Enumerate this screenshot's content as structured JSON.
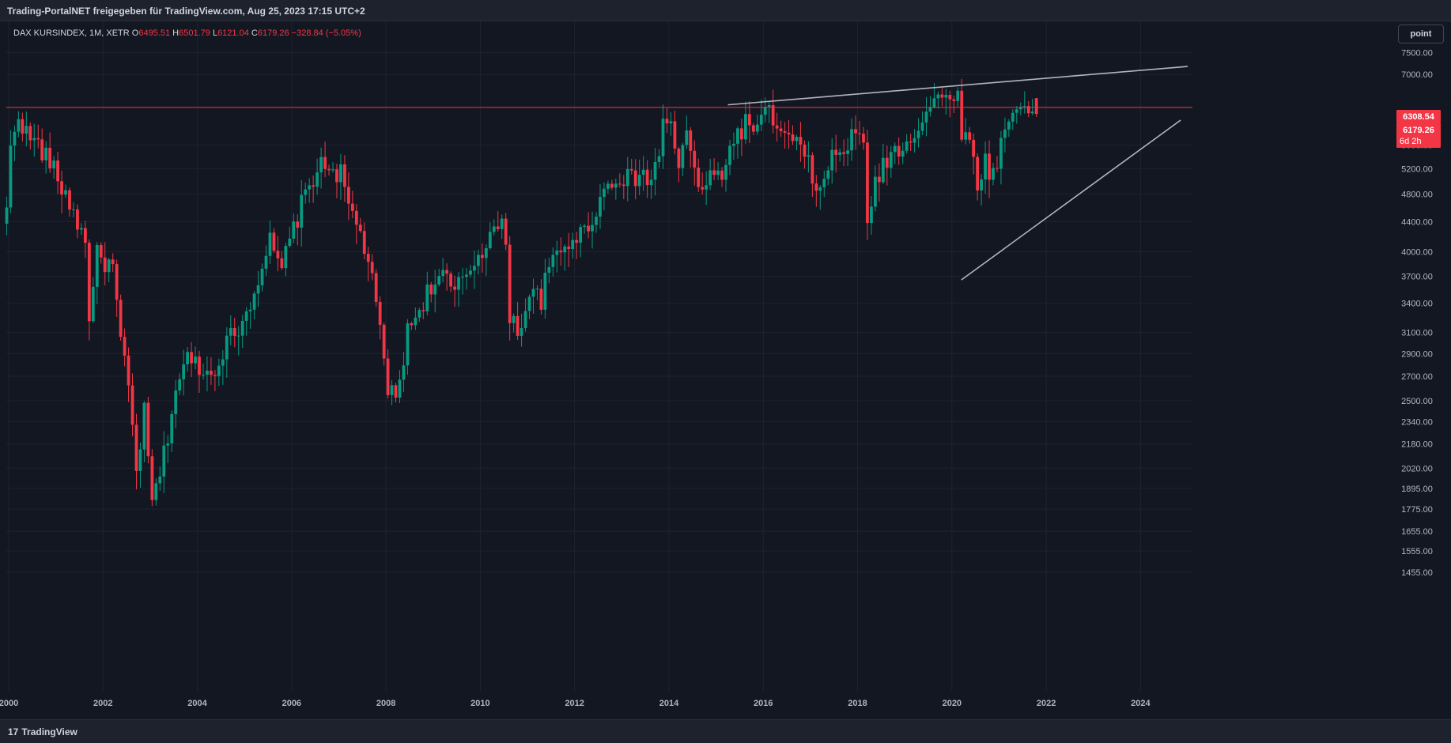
{
  "header": {
    "title": "Trading-PortalNET freigegeben für TradingView.com, Aug 25, 2023 17:15 UTC+2"
  },
  "legend": {
    "symbol": "DAX KURSINDEX, 1M, XETR",
    "open_label": "O",
    "open_value": "6495.51",
    "high_label": "H",
    "high_value": "6501.79",
    "low_label": "L",
    "low_value": "6121.04",
    "close_label": "C",
    "close_value": "6179.26",
    "change": "−328.84 (−5.05%)"
  },
  "scale_button": {
    "label": "point"
  },
  "price_labels": {
    "horizontal_line": "6308.54",
    "last_price": "6179.26",
    "countdown": "6d 2h"
  },
  "footer": {
    "logo_mark": "17",
    "logo_text": "TradingView"
  },
  "colors": {
    "background": "#131722",
    "up": "#089981",
    "down": "#f23645",
    "grid": "#1f2330",
    "trendline": "#b2b5be",
    "hline": "#f23645"
  },
  "chart_data": {
    "type": "candlestick",
    "title": "DAX KURSINDEX, 1M, XETR",
    "y_scale": "log",
    "ylim": [
      1380,
      7700
    ],
    "xlim": [
      1999.95,
      2025.1
    ],
    "y_ticks": [
      7500,
      7000,
      5600,
      5200,
      4800,
      4400,
      4000,
      3700,
      3400,
      3100,
      2900,
      2700,
      2500,
      2340,
      2180,
      2020,
      1895,
      1775,
      1655,
      1555,
      1455
    ],
    "y_tick_labels": [
      "7500.00",
      "7000.00",
      "5600.00",
      "5200.00",
      "4800.00",
      "4400.00",
      "4000.00",
      "3700.00",
      "3400.00",
      "3100.00",
      "2900.00",
      "2700.00",
      "2500.00",
      "2340.00",
      "2180.00",
      "2020.00",
      "1895.00",
      "1775.00",
      "1655.00",
      "1555.00",
      "1455.00"
    ],
    "x_ticks": [
      2000,
      2002,
      2004,
      2006,
      2008,
      2010,
      2012,
      2014,
      2016,
      2018,
      2020,
      2022,
      2024
    ],
    "x_tick_labels": [
      "2000",
      "2002",
      "2004",
      "2006",
      "2008",
      "2010",
      "2012",
      "2014",
      "2016",
      "2018",
      "2020",
      "2022",
      "2024"
    ],
    "horizontal_line": 6308.54,
    "trendlines": [
      {
        "x1": 2015.25,
        "y1": 6360,
        "x2": 2025.0,
        "y2": 7180
      },
      {
        "x1": 2020.2,
        "y1": 3660,
        "x2": 2024.85,
        "y2": 6060
      }
    ],
    "start_year": 1999.958,
    "anchors": [
      [
        0,
        4600
      ],
      [
        1,
        5500
      ],
      [
        3,
        6200
      ],
      [
        5,
        5800
      ],
      [
        8,
        5600
      ],
      [
        11,
        5300
      ],
      [
        14,
        4900
      ],
      [
        17,
        4550
      ],
      [
        20,
        4100
      ],
      [
        21,
        3300
      ],
      [
        23,
        3950
      ],
      [
        27,
        3800
      ],
      [
        29,
        3000
      ],
      [
        31,
        2600
      ],
      [
        33,
        2000
      ],
      [
        35,
        2400
      ],
      [
        37,
        1800
      ],
      [
        40,
        2100
      ],
      [
        43,
        2600
      ],
      [
        46,
        2850
      ],
      [
        49,
        2800
      ],
      [
        52,
        2700
      ],
      [
        55,
        2950
      ],
      [
        58,
        3100
      ],
      [
        61,
        3300
      ],
      [
        64,
        3700
      ],
      [
        67,
        4150
      ],
      [
        68,
        3900
      ],
      [
        70,
        3800
      ],
      [
        73,
        4300
      ],
      [
        76,
        4800
      ],
      [
        79,
        5200
      ],
      [
        82,
        5250
      ],
      [
        85,
        5100
      ],
      [
        87,
        4600
      ],
      [
        89,
        4400
      ],
      [
        92,
        3900
      ],
      [
        95,
        3100
      ],
      [
        97,
        2600
      ],
      [
        99,
        2500
      ],
      [
        102,
        3100
      ],
      [
        105,
        3350
      ],
      [
        108,
        3600
      ],
      [
        111,
        3700
      ],
      [
        114,
        3500
      ],
      [
        117,
        3750
      ],
      [
        120,
        3950
      ],
      [
        123,
        4250
      ],
      [
        126,
        4300
      ],
      [
        127,
        4150
      ],
      [
        128,
        3300
      ],
      [
        130,
        3100
      ],
      [
        133,
        3500
      ],
      [
        136,
        3450
      ],
      [
        138,
        3800
      ],
      [
        141,
        4000
      ],
      [
        144,
        4200
      ],
      [
        147,
        4250
      ],
      [
        150,
        4600
      ],
      [
        153,
        4950
      ],
      [
        156,
        5100
      ],
      [
        159,
        5000
      ],
      [
        162,
        5150
      ],
      [
        163,
        4950
      ],
      [
        166,
        5300
      ],
      [
        167,
        6200
      ],
      [
        169,
        5900
      ],
      [
        171,
        5300
      ],
      [
        173,
        5800
      ],
      [
        174,
        5400
      ],
      [
        176,
        4900
      ],
      [
        179,
        5000
      ],
      [
        182,
        5150
      ],
      [
        185,
        5700
      ],
      [
        188,
        6000
      ],
      [
        191,
        5900
      ],
      [
        193,
        6200
      ],
      [
        195,
        6100
      ],
      [
        197,
        5750
      ],
      [
        200,
        5700
      ],
      [
        203,
        5400
      ],
      [
        205,
        5100
      ],
      [
        207,
        4800
      ],
      [
        210,
        5400
      ],
      [
        213,
        5500
      ],
      [
        216,
        5850
      ],
      [
        218,
        5500
      ],
      [
        219,
        4500
      ],
      [
        221,
        4900
      ],
      [
        223,
        5300
      ],
      [
        226,
        5500
      ],
      [
        229,
        5700
      ],
      [
        232,
        5900
      ],
      [
        235,
        6350
      ],
      [
        238,
        6500
      ],
      [
        240,
        6650
      ],
      [
        242,
        6500
      ],
      [
        243,
        5900
      ],
      [
        245,
        5600
      ],
      [
        247,
        5000
      ],
      [
        249,
        5300
      ],
      [
        251,
        5100
      ],
      [
        254,
        5900
      ],
      [
        257,
        6300
      ],
      [
        259,
        6400
      ],
      [
        261,
        6350
      ],
      [
        262,
        6179.26
      ]
    ]
  }
}
